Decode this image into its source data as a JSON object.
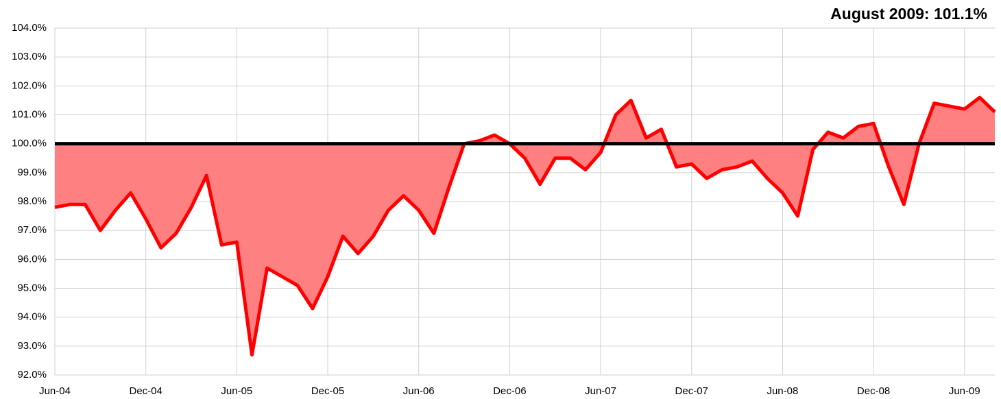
{
  "chart_data": {
    "type": "area",
    "title": "August 2009: 101.1%",
    "categories": [
      "Jun-04",
      null,
      null,
      null,
      null,
      null,
      "Dec-04",
      null,
      null,
      null,
      null,
      null,
      "Jun-05",
      null,
      null,
      null,
      null,
      null,
      "Dec-05",
      null,
      null,
      null,
      null,
      null,
      "Jun-06",
      null,
      null,
      null,
      null,
      null,
      "Dec-06",
      null,
      null,
      null,
      null,
      null,
      "Jun-07",
      null,
      null,
      null,
      null,
      null,
      "Dec-07",
      null,
      null,
      null,
      null,
      null,
      "Jun-08",
      null,
      null,
      null,
      null,
      null,
      "Dec-08",
      null,
      null,
      null,
      null,
      null,
      "Jun-09",
      null,
      null
    ],
    "series": [
      {
        "color": "#ff0000",
        "fill": "#ff8080",
        "values": [
          97.8,
          97.9,
          97.9,
          97.0,
          97.7,
          98.3,
          97.4,
          96.4,
          96.9,
          97.8,
          98.9,
          96.5,
          96.6,
          92.7,
          95.7,
          95.4,
          95.1,
          94.3,
          95.4,
          96.8,
          96.2,
          96.8,
          97.7,
          98.2,
          97.7,
          96.9,
          98.5,
          100.0,
          100.1,
          100.3,
          100.0,
          99.5,
          98.6,
          99.5,
          99.5,
          99.1,
          99.7,
          101.0,
          101.5,
          100.2,
          100.5,
          99.2,
          99.3,
          98.8,
          99.1,
          99.2,
          99.4,
          98.8,
          98.3,
          97.5,
          99.8,
          100.4,
          100.2,
          100.6,
          100.7,
          99.2,
          97.9,
          100.0,
          101.4,
          101.3,
          101.2,
          101.6,
          101.1
        ]
      }
    ],
    "reference_line": 100,
    "reference_color": "#000000",
    "ylim": [
      92,
      104
    ],
    "yticks": [
      {
        "value": 92,
        "label": "92.0%"
      },
      {
        "value": 93,
        "label": "93.0%"
      },
      {
        "value": 94,
        "label": "94.0%"
      },
      {
        "value": 95,
        "label": "95.0%"
      },
      {
        "value": 96,
        "label": "96.0%"
      },
      {
        "value": 97,
        "label": "97.0%"
      },
      {
        "value": 98,
        "label": "98.0%"
      },
      {
        "value": 99,
        "label": "99.0%"
      },
      {
        "value": 100,
        "label": "100.0%"
      },
      {
        "value": 101,
        "label": "101.0%"
      },
      {
        "value": 102,
        "label": "102.0%"
      },
      {
        "value": 103,
        "label": "103.0%"
      },
      {
        "value": 104,
        "label": "104.0%"
      }
    ],
    "grid": true
  }
}
